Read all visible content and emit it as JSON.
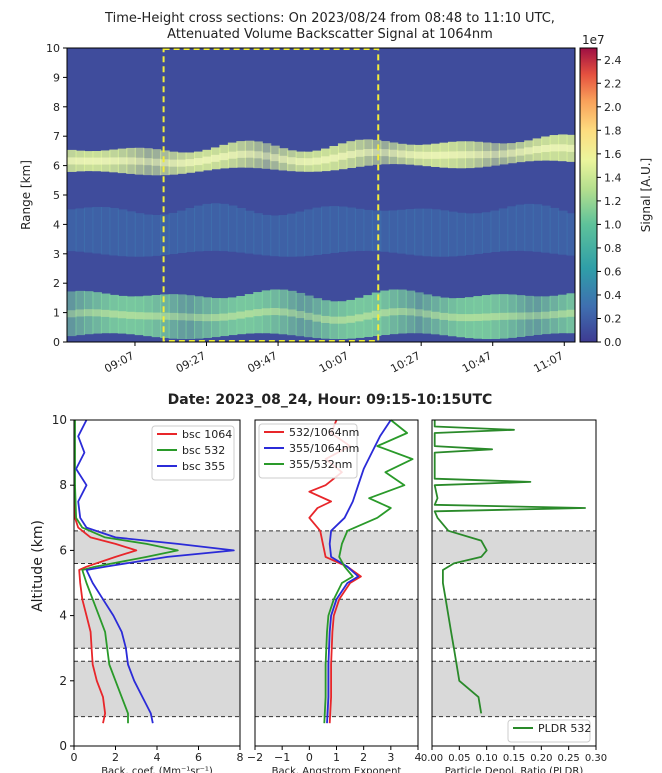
{
  "chart_data": [
    {
      "type": "heatmap",
      "title": "Time-Height cross sections: On 2023/08/24 from 08:48 to 11:10 UTC,",
      "subtitle": "Attenuated Volume Backscatter Signal at 1064nm",
      "ylabel": "Range [km]",
      "ylim": [
        0,
        10
      ],
      "yticks": [
        "0",
        "1",
        "2",
        "3",
        "4",
        "5",
        "6",
        "7",
        "8",
        "9",
        "10"
      ],
      "xticks": [
        "09:07",
        "09:27",
        "09:47",
        "10:07",
        "10:27",
        "10:47",
        "11:07"
      ],
      "x_range_minutes": [
        528,
        670
      ],
      "colorbar": {
        "label": "Signal [A.U.]",
        "exponent": "1e7",
        "range": [
          0,
          2.5
        ],
        "ticks": [
          "0.0",
          "0.2",
          "0.4",
          "0.6",
          "0.8",
          "1.0",
          "1.2",
          "1.4",
          "1.6",
          "1.8",
          "2.0",
          "2.2",
          "2.4"
        ]
      },
      "layers": [
        {
          "feature": "boundary layer aerosol",
          "base_km": 0.2,
          "top_km": 1.6,
          "intensity": 1.0
        },
        {
          "feature": "elevated aerosol layer",
          "base_km": 5.7,
          "top_km": 6.5,
          "intensity": 1.3
        },
        {
          "feature": "weak layer",
          "base_km": 3.0,
          "top_km": 4.5,
          "intensity": 0.4
        }
      ],
      "highlight_box": {
        "x_start_minutes": 555,
        "x_end_minutes": 615,
        "y_range_km": [
          0,
          10
        ],
        "style": "yellow dashed"
      }
    },
    {
      "type": "line",
      "suptitle": "Date: 2023_08_24, Hour: 09:15-10:15UTC",
      "ylabel": "Altitude (km)",
      "ylim": [
        0,
        10
      ],
      "yticks": [
        "0",
        "2",
        "4",
        "6",
        "8",
        "10"
      ],
      "shaded_bands_km": [
        [
          0.9,
          2.6
        ],
        [
          3.0,
          4.5
        ],
        [
          5.6,
          6.6
        ]
      ],
      "panels": [
        {
          "xlabel": "Back. coef. (Mm⁻¹sr⁻¹)",
          "xlim": [
            0,
            8
          ],
          "xticks": [
            "0",
            "2",
            "4",
            "6",
            "8"
          ],
          "legend": "top-right",
          "series": [
            {
              "name": "bsc 1064",
              "color": "#e8262a",
              "points": [
                [
                  1.4,
                  0.7
                ],
                [
                  1.5,
                  1.0
                ],
                [
                  1.4,
                  1.5
                ],
                [
                  1.1,
                  2.0
                ],
                [
                  0.9,
                  2.5
                ],
                [
                  0.85,
                  3.0
                ],
                [
                  0.8,
                  3.5
                ],
                [
                  0.6,
                  4.0
                ],
                [
                  0.4,
                  4.5
                ],
                [
                  0.3,
                  5.0
                ],
                [
                  0.25,
                  5.4
                ],
                [
                  0.6,
                  5.5
                ],
                [
                  2.0,
                  5.8
                ],
                [
                  3.0,
                  6.0
                ],
                [
                  2.0,
                  6.2
                ],
                [
                  0.8,
                  6.4
                ],
                [
                  0.2,
                  6.7
                ],
                [
                  0.05,
                  7.0
                ],
                [
                  0.02,
                  8.0
                ],
                [
                  0.02,
                  10.0
                ]
              ]
            },
            {
              "name": "bsc 532",
              "color": "#2a9a2a",
              "points": [
                [
                  2.6,
                  0.7
                ],
                [
                  2.6,
                  1.0
                ],
                [
                  2.3,
                  1.5
                ],
                [
                  2.0,
                  2.0
                ],
                [
                  1.7,
                  2.5
                ],
                [
                  1.6,
                  3.0
                ],
                [
                  1.5,
                  3.5
                ],
                [
                  1.2,
                  4.0
                ],
                [
                  0.9,
                  4.5
                ],
                [
                  0.6,
                  5.0
                ],
                [
                  0.4,
                  5.4
                ],
                [
                  1.0,
                  5.5
                ],
                [
                  3.5,
                  5.8
                ],
                [
                  5.0,
                  6.0
                ],
                [
                  3.5,
                  6.2
                ],
                [
                  1.5,
                  6.4
                ],
                [
                  0.4,
                  6.7
                ],
                [
                  0.1,
                  7.0
                ],
                [
                  0.05,
                  8.0
                ],
                [
                  0.05,
                  10.0
                ]
              ]
            },
            {
              "name": "bsc 355",
              "color": "#2b2bd8",
              "points": [
                [
                  3.8,
                  0.7
                ],
                [
                  3.7,
                  1.0
                ],
                [
                  3.3,
                  1.5
                ],
                [
                  2.9,
                  2.0
                ],
                [
                  2.6,
                  2.5
                ],
                [
                  2.5,
                  3.0
                ],
                [
                  2.3,
                  3.5
                ],
                [
                  1.9,
                  4.0
                ],
                [
                  1.4,
                  4.5
                ],
                [
                  0.9,
                  5.0
                ],
                [
                  0.6,
                  5.4
                ],
                [
                  1.5,
                  5.5
                ],
                [
                  4.5,
                  5.8
                ],
                [
                  7.7,
                  6.0
                ],
                [
                  5.0,
                  6.2
                ],
                [
                  2.0,
                  6.4
                ],
                [
                  0.6,
                  6.7
                ],
                [
                  0.3,
                  7.0
                ],
                [
                  0.2,
                  7.5
                ],
                [
                  0.6,
                  8.0
                ],
                [
                  0.1,
                  8.5
                ],
                [
                  0.5,
                  9.0
                ],
                [
                  0.2,
                  9.5
                ],
                [
                  0.6,
                  10.0
                ]
              ]
            }
          ]
        },
        {
          "xlabel": "Back. Angstrom Exponent",
          "xlim": [
            -2,
            4
          ],
          "xticks": [
            "−2",
            "−1",
            "0",
            "1",
            "2",
            "3",
            "4"
          ],
          "legend": "top-left",
          "series": [
            {
              "name": "532/1064nm",
              "color": "#e8262a",
              "points": [
                [
                  0.75,
                  0.7
                ],
                [
                  0.8,
                  1.5
                ],
                [
                  0.8,
                  2.5
                ],
                [
                  0.85,
                  3.5
                ],
                [
                  0.9,
                  4.0
                ],
                [
                  1.1,
                  4.5
                ],
                [
                  1.5,
                  5.0
                ],
                [
                  1.9,
                  5.2
                ],
                [
                  1.4,
                  5.5
                ],
                [
                  0.6,
                  5.8
                ],
                [
                  0.5,
                  6.2
                ],
                [
                  0.4,
                  6.6
                ],
                [
                  0.0,
                  7.0
                ],
                [
                  0.3,
                  7.3
                ],
                [
                  0.8,
                  7.5
                ],
                [
                  0.0,
                  7.8
                ],
                [
                  0.6,
                  8.0
                ],
                [
                  1.2,
                  8.4
                ],
                [
                  0.6,
                  8.8
                ],
                [
                  1.5,
                  9.2
                ],
                [
                  0.8,
                  9.6
                ],
                [
                  1.0,
                  10.0
                ]
              ]
            },
            {
              "name": "355/1064nm",
              "color": "#2b2bd8",
              "points": [
                [
                  0.65,
                  0.7
                ],
                [
                  0.7,
                  1.5
                ],
                [
                  0.7,
                  2.5
                ],
                [
                  0.75,
                  3.5
                ],
                [
                  0.8,
                  4.0
                ],
                [
                  1.0,
                  4.5
                ],
                [
                  1.4,
                  5.0
                ],
                [
                  1.8,
                  5.2
                ],
                [
                  1.4,
                  5.5
                ],
                [
                  0.8,
                  5.8
                ],
                [
                  0.75,
                  6.2
                ],
                [
                  0.8,
                  6.6
                ],
                [
                  1.3,
                  7.0
                ],
                [
                  1.6,
                  7.5
                ],
                [
                  1.8,
                  8.0
                ],
                [
                  2.0,
                  8.5
                ],
                [
                  2.3,
                  9.0
                ],
                [
                  2.6,
                  9.5
                ],
                [
                  3.0,
                  10.0
                ]
              ]
            },
            {
              "name": "355/532nm",
              "color": "#2a9a2a",
              "points": [
                [
                  0.55,
                  0.7
                ],
                [
                  0.6,
                  1.5
                ],
                [
                  0.6,
                  2.5
                ],
                [
                  0.65,
                  3.5
                ],
                [
                  0.7,
                  4.0
                ],
                [
                  0.9,
                  4.5
                ],
                [
                  1.2,
                  5.0
                ],
                [
                  1.6,
                  5.2
                ],
                [
                  1.3,
                  5.5
                ],
                [
                  1.1,
                  5.8
                ],
                [
                  1.2,
                  6.2
                ],
                [
                  1.4,
                  6.6
                ],
                [
                  2.5,
                  7.0
                ],
                [
                  3.0,
                  7.3
                ],
                [
                  2.2,
                  7.6
                ],
                [
                  3.5,
                  8.0
                ],
                [
                  2.8,
                  8.4
                ],
                [
                  3.8,
                  8.8
                ],
                [
                  2.5,
                  9.2
                ],
                [
                  3.6,
                  9.6
                ],
                [
                  3.0,
                  10.0
                ]
              ]
            }
          ]
        },
        {
          "xlabel": "Particle Depol. Ratio (PLDR)",
          "xlim": [
            0,
            0.3
          ],
          "xticks": [
            "0.00",
            "0.05",
            "0.10",
            "0.15",
            "0.20",
            "0.25",
            "0.30"
          ],
          "legend": "bottom-right",
          "series": [
            {
              "name": "PLDR 532",
              "color": "#2a8a2a",
              "points": [
                [
                  0.09,
                  1.0
                ],
                [
                  0.085,
                  1.5
                ],
                [
                  0.05,
                  2.0
                ],
                [
                  0.045,
                  2.5
                ],
                [
                  0.04,
                  3.0
                ],
                [
                  0.035,
                  3.5
                ],
                [
                  0.03,
                  4.0
                ],
                [
                  0.025,
                  4.5
                ],
                [
                  0.02,
                  5.0
                ],
                [
                  0.02,
                  5.4
                ],
                [
                  0.04,
                  5.6
                ],
                [
                  0.09,
                  5.8
                ],
                [
                  0.1,
                  6.0
                ],
                [
                  0.09,
                  6.3
                ],
                [
                  0.03,
                  6.6
                ],
                [
                  0.01,
                  7.0
                ],
                [
                  0.005,
                  7.2
                ],
                [
                  0.28,
                  7.3
                ],
                [
                  0.005,
                  7.4
                ],
                [
                  0.01,
                  7.6
                ],
                [
                  0.005,
                  8.0
                ],
                [
                  0.18,
                  8.1
                ],
                [
                  0.005,
                  8.2
                ],
                [
                  0.005,
                  9.0
                ],
                [
                  0.11,
                  9.1
                ],
                [
                  0.005,
                  9.2
                ],
                [
                  0.005,
                  9.6
                ],
                [
                  0.15,
                  9.7
                ],
                [
                  0.005,
                  9.8
                ],
                [
                  0.005,
                  10.0
                ]
              ]
            }
          ]
        }
      ]
    }
  ]
}
